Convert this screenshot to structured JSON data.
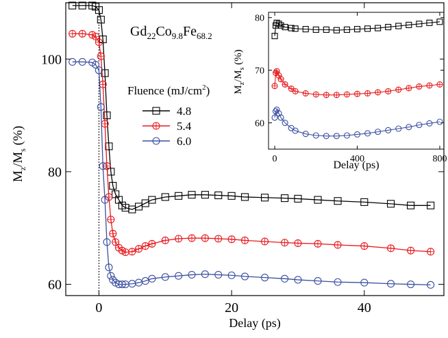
{
  "chart_data": [
    {
      "type": "scatter",
      "title": "",
      "sample": {
        "base": "Gd",
        "s1": "22",
        "b2": "Co",
        "s2": "9.8",
        "b3": "Fe",
        "s3": "68.2"
      },
      "xlabel": "Delay (ps)",
      "ylabel": {
        "base": "M",
        "sub1": "z",
        "mid": "/M",
        "sub2": "s",
        "tail": " (%)"
      },
      "xlim": [
        -5,
        52
      ],
      "ylim": [
        58,
        110
      ],
      "xticks": [
        0,
        20,
        40
      ],
      "yticks": [
        60,
        80,
        100
      ],
      "legend_title": "Fluence (mJ/cm",
      "legend_sup": "2",
      "legend_close": ")",
      "legend_placement": "center-left",
      "time_zero_line": 0,
      "series": [
        {
          "name": "4.8",
          "color": "#000000",
          "marker": "square",
          "x": [
            -4.0,
            -2.5,
            -1.0,
            -0.5,
            0.0,
            0.3,
            0.6,
            0.9,
            1.2,
            1.5,
            1.8,
            2.1,
            2.5,
            3.0,
            3.5,
            4.0,
            5.0,
            6.0,
            7.0,
            8.0,
            10.0,
            12.0,
            14.0,
            16.0,
            18.0,
            20.0,
            22.0,
            25.0,
            28.0,
            30.0,
            33.0,
            36.0,
            40.0,
            44.0,
            47.0,
            50.0
          ],
          "y": [
            109.5,
            109.5,
            109.5,
            109.3,
            108.7,
            107.0,
            103.5,
            97.5,
            90.0,
            84.5,
            80.0,
            77.5,
            76.0,
            75.0,
            74.0,
            73.6,
            73.3,
            73.8,
            74.4,
            75.0,
            75.5,
            75.7,
            75.9,
            75.9,
            75.8,
            75.7,
            75.5,
            75.4,
            75.3,
            75.2,
            75.0,
            74.8,
            74.6,
            74.3,
            74.0,
            74.0
          ]
        },
        {
          "name": "5.4",
          "color": "#e8191c",
          "marker": "circle-plus",
          "x": [
            -4.0,
            -2.5,
            -1.0,
            -0.5,
            0.0,
            0.3,
            0.6,
            0.9,
            1.2,
            1.5,
            1.8,
            2.1,
            2.5,
            3.0,
            3.5,
            4.0,
            5.0,
            6.0,
            7.0,
            8.0,
            10.0,
            12.0,
            14.0,
            16.0,
            18.0,
            20.0,
            22.0,
            25.0,
            28.0,
            30.0,
            33.0,
            36.0,
            40.0,
            44.0,
            47.0,
            50.0
          ],
          "y": [
            104.5,
            104.5,
            104.3,
            104.0,
            103.0,
            100.5,
            95.5,
            88.5,
            81.0,
            75.5,
            71.5,
            69.0,
            67.5,
            66.5,
            66.0,
            65.7,
            65.8,
            66.3,
            66.8,
            67.2,
            67.8,
            68.1,
            68.2,
            68.2,
            68.1,
            68.0,
            67.8,
            67.6,
            67.4,
            67.3,
            67.2,
            67.0,
            66.8,
            66.4,
            66.0,
            65.8
          ]
        },
        {
          "name": "6.0",
          "color": "#3a4ea0",
          "marker": "circle",
          "x": [
            -4.0,
            -2.5,
            -1.0,
            -0.5,
            0.0,
            0.3,
            0.6,
            0.9,
            1.2,
            1.5,
            1.8,
            2.1,
            2.5,
            3.0,
            3.5,
            4.0,
            5.0,
            6.0,
            7.0,
            8.0,
            10.0,
            12.0,
            14.0,
            16.0,
            18.0,
            20.0,
            22.0,
            25.0,
            28.0,
            30.0,
            33.0,
            36.0,
            40.0,
            44.0,
            47.0,
            50.0
          ],
          "y": [
            99.5,
            99.5,
            99.4,
            99.0,
            98.0,
            91.5,
            81.0,
            75.0,
            67.5,
            63.0,
            61.5,
            60.8,
            60.3,
            60.0,
            60.0,
            60.0,
            60.1,
            60.3,
            60.6,
            61.0,
            61.3,
            61.5,
            61.7,
            61.8,
            61.7,
            61.6,
            61.4,
            61.2,
            61.0,
            60.8,
            60.6,
            60.4,
            60.3,
            60.1,
            60.0,
            59.9
          ]
        }
      ]
    },
    {
      "type": "scatter",
      "title": "",
      "xlabel": "Delay (ps)",
      "ylabel": {
        "base": "M",
        "sub1": "z",
        "mid": "/M",
        "sub2": "s",
        "tail": " (%)"
      },
      "xlim": [
        -30,
        820
      ],
      "ylim": [
        55,
        81
      ],
      "xticks": [
        0,
        400,
        800
      ],
      "yticks": [
        60,
        70,
        80
      ],
      "series": [
        {
          "name": "4.8",
          "color": "#000000",
          "marker": "square",
          "x": [
            0,
            5,
            10,
            20,
            30,
            50,
            80,
            100,
            150,
            200,
            250,
            300,
            350,
            400,
            450,
            500,
            550,
            600,
            650,
            700,
            750,
            800
          ],
          "y": [
            76.5,
            78.5,
            79.0,
            78.8,
            78.5,
            78.2,
            78.0,
            77.9,
            77.8,
            77.7,
            77.7,
            77.6,
            77.7,
            77.8,
            77.9,
            78.0,
            78.2,
            78.4,
            78.6,
            78.8,
            79.0,
            79.2
          ]
        },
        {
          "name": "5.4",
          "color": "#e8191c",
          "marker": "circle-plus",
          "x": [
            0,
            5,
            10,
            20,
            30,
            50,
            80,
            100,
            150,
            200,
            250,
            300,
            350,
            400,
            450,
            500,
            550,
            600,
            650,
            700,
            750,
            800
          ],
          "y": [
            67.0,
            69.5,
            69.8,
            69.0,
            68.3,
            67.3,
            66.5,
            66.0,
            65.6,
            65.4,
            65.3,
            65.3,
            65.4,
            65.5,
            65.6,
            65.8,
            66.0,
            66.3,
            66.6,
            66.9,
            67.1,
            67.3
          ]
        },
        {
          "name": "6.0",
          "color": "#3a4ea0",
          "marker": "circle",
          "x": [
            0,
            5,
            10,
            20,
            30,
            50,
            80,
            100,
            150,
            200,
            250,
            300,
            350,
            400,
            450,
            500,
            550,
            600,
            650,
            700,
            750,
            800
          ],
          "y": [
            61.0,
            62.2,
            62.5,
            61.8,
            61.0,
            60.0,
            59.0,
            58.5,
            57.9,
            57.6,
            57.5,
            57.5,
            57.6,
            57.8,
            58.0,
            58.3,
            58.6,
            58.9,
            59.2,
            59.6,
            59.9,
            60.2
          ]
        }
      ]
    }
  ]
}
